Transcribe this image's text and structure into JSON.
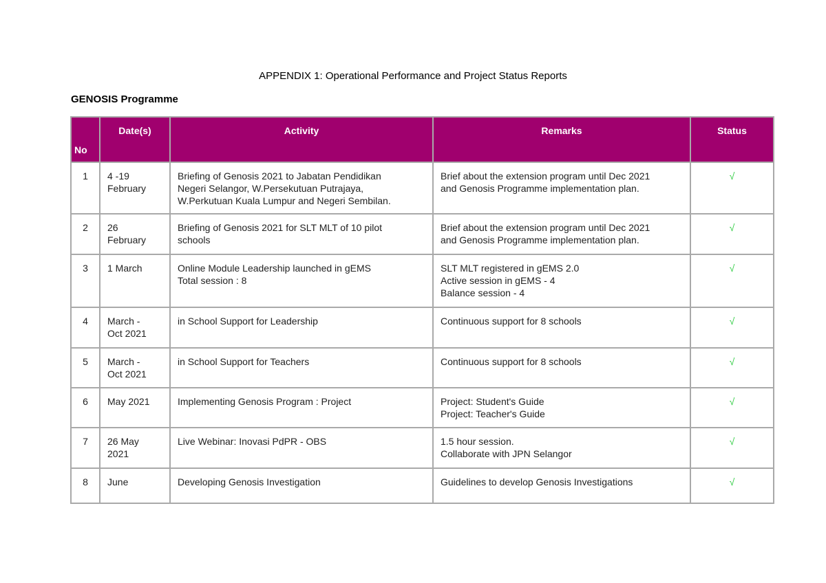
{
  "header": {
    "title": "APPENDIX 1: Operational Performance and Project Status Reports",
    "subtitle": "GENOSIS Programme"
  },
  "table": {
    "columns": [
      "No",
      "Date(s)",
      "Activity",
      "Remarks",
      "Status"
    ],
    "rows": [
      [
        "1",
        [
          "4 -19",
          "February"
        ],
        [
          "Briefing of Genosis 2021 to Jabatan Pendidikan",
          "Negeri Selangor, W.Persekutuan Putrajaya,",
          "W.Perkutuan Kuala Lumpur and Negeri Sembilan."
        ],
        [
          "Brief about the extension program until Dec 2021",
          "and Genosis Programme implementation plan."
        ],
        "√"
      ],
      [
        "2",
        [
          "26",
          "February"
        ],
        [
          "Briefing of Genosis 2021 for SLT MLT of 10 pilot",
          "schools"
        ],
        [
          "Brief about the extension program until Dec 2021",
          "and Genosis Programme implementation plan."
        ],
        "√"
      ],
      [
        "3",
        [
          "1 March"
        ],
        [
          "Online Module Leadership launched in gEMS",
          "Total session : 8"
        ],
        [
          "SLT MLT registered in gEMS 2.0",
          "Active session in gEMS - 4",
          "Balance session - 4"
        ],
        "√"
      ],
      [
        "4",
        [
          "March -",
          "Oct 2021"
        ],
        [
          "in School Support for Leadership"
        ],
        [
          "Continuous support for 8 schools"
        ],
        "√"
      ],
      [
        "5",
        [
          "March -",
          "Oct 2021"
        ],
        [
          "in School Support for Teachers"
        ],
        [
          "Continuous support for 8 schools"
        ],
        "√"
      ],
      [
        "6",
        [
          "May 2021"
        ],
        [
          "Implementing Genosis Program : Project"
        ],
        [
          "Project: Student's Guide",
          "Project: Teacher's Guide"
        ],
        "√"
      ],
      [
        "7",
        [
          "26 May",
          "2021"
        ],
        [
          "Live Webinar: Inovasi PdPR - OBS"
        ],
        [
          "1.5 hour session.",
          "Collaborate with JPN Selangor"
        ],
        "√"
      ],
      [
        "8",
        [
          "June"
        ],
        [
          "Developing Genosis Investigation"
        ],
        [
          "Guidelines to develop Genosis Investigations"
        ],
        "√"
      ]
    ]
  }
}
